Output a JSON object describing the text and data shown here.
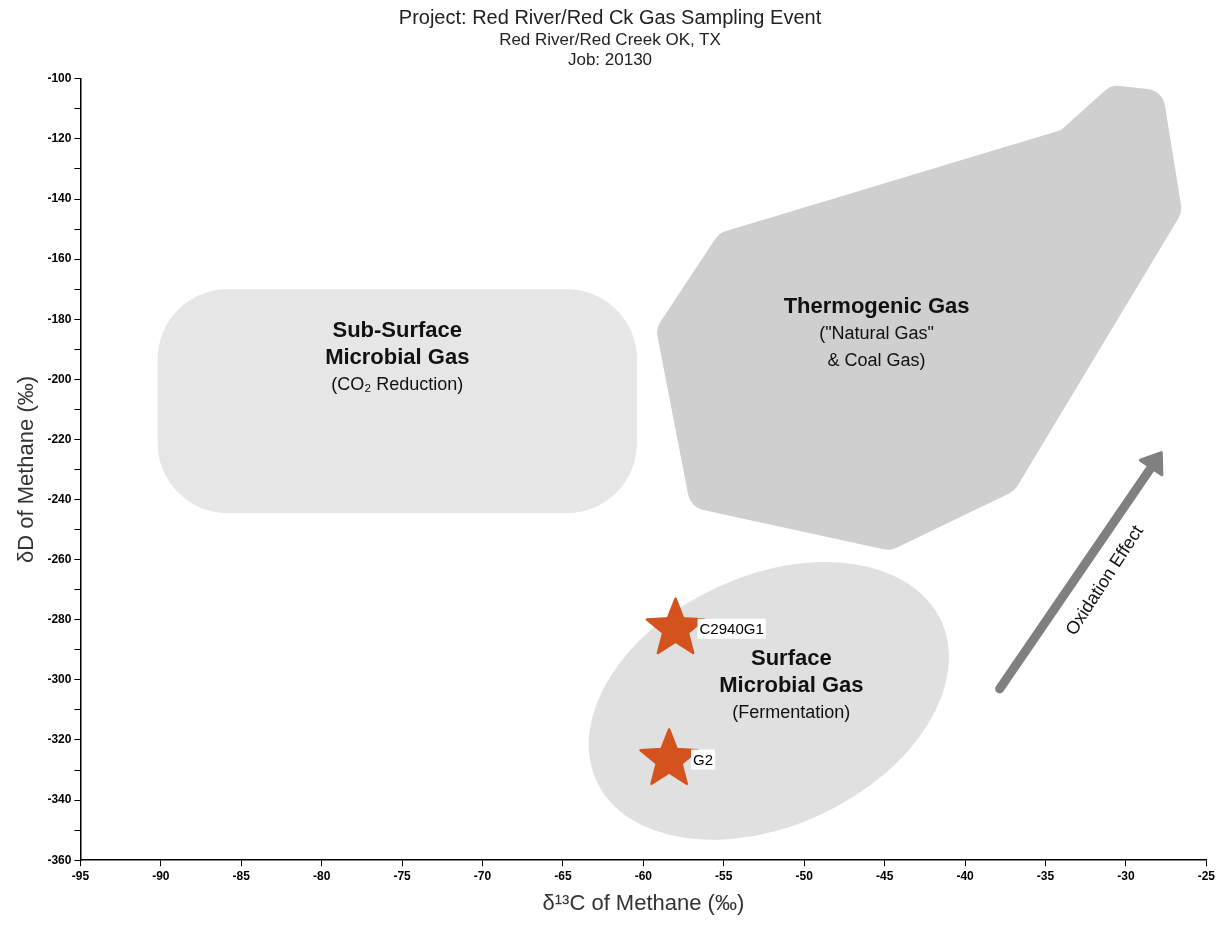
{
  "chart_data": {
    "type": "scatter",
    "title": "Project: Red River/Red Ck Gas Sampling Event",
    "subtitle": "Red River/Red Creek OK, TX\nJob: 20130",
    "xlabel": "δ¹³C of Methane (‰)",
    "ylabel": "δD of Methane (‰)",
    "x": [
      -58,
      -58.4
    ],
    "values": [
      -283,
      -326.5
    ],
    "color": "#d4521e",
    "marker": "star",
    "legend": false,
    "grid": false,
    "xlim": [
      -95,
      -25
    ],
    "xticks": [
      -95,
      -90,
      -85,
      -80,
      -75,
      -70,
      -65,
      -60,
      -55,
      -50,
      -45,
      -40,
      -35,
      -30,
      -25
    ],
    "ylim": [
      -360,
      -100
    ],
    "yticks": [
      -360,
      {
        "value": -350,
        "label": null
      },
      -340,
      {
        "value": -330,
        "label": null
      },
      -320,
      {
        "value": -310,
        "label": null
      },
      -300,
      {
        "value": -290,
        "label": null
      },
      -280,
      {
        "value": -270,
        "label": null
      },
      -260,
      {
        "value": -250,
        "label": null
      },
      -240,
      {
        "value": -230,
        "label": null
      },
      -220,
      {
        "value": -210,
        "label": null
      },
      -200,
      {
        "value": -190,
        "label": null
      },
      -180,
      {
        "value": -170,
        "label": null
      },
      -160,
      {
        "value": -150,
        "label": null
      },
      -140,
      {
        "value": -130,
        "label": null
      },
      -120,
      {
        "value": -110,
        "label": null
      },
      -100
    ],
    "annotations": [
      "Sub-Surface",
      "Microbial Gas",
      "(CO₂ Reduction)",
      "Thermogenic Gas",
      "(\"Natural Gas\"",
      "& Coal Gas)",
      "Surface",
      "Microbial Gas",
      "(Fermentation)",
      "Oxidation Effect",
      {
        "text": "C2940G1",
        "x": -58,
        "y": -283
      },
      {
        "text": "G2",
        "x": -58.4,
        "y": -326.5
      }
    ]
  }
}
